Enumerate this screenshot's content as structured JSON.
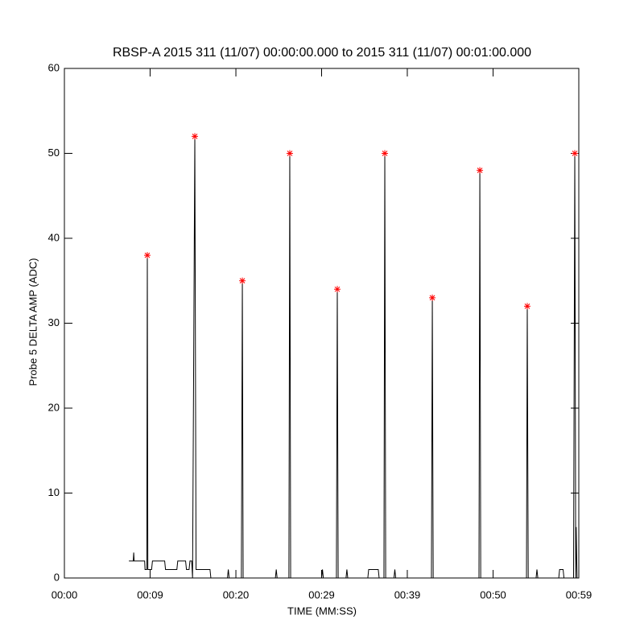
{
  "chart_data": {
    "type": "line",
    "title": "RBSP-A 2015 311 (11/07) 00:00:00.000 to 2015 311 (11/07) 00:01:00.000",
    "x_label": "TIME (MM:SS)",
    "y_label": "Probe 5 DELTA AMP (ADC)",
    "xlim": [
      0,
      59
    ],
    "ylim": [
      0,
      60
    ],
    "xticks": [
      {
        "value": 0,
        "label": "00:00"
      },
      {
        "value": 9.83,
        "label": "00:09"
      },
      {
        "value": 19.67,
        "label": "00:20"
      },
      {
        "value": 29.5,
        "label": "00:29"
      },
      {
        "value": 39.33,
        "label": "00:39"
      },
      {
        "value": 49.17,
        "label": "00:50"
      },
      {
        "value": 59,
        "label": "00:59"
      }
    ],
    "yticks": [
      0,
      10,
      20,
      30,
      40,
      50,
      60
    ],
    "series": [
      {
        "color": "#000000",
        "marker": "none",
        "x": [
          7.4,
          7.9,
          7.95,
          8.0,
          9.2,
          9.25,
          9.45,
          9.51,
          9.57,
          10.0,
          10.1,
          11.5,
          11.6,
          12.9,
          13.0,
          13.9,
          14.0,
          14.3,
          14.4,
          14.6,
          14.7,
          14.96,
          15.1,
          16.7,
          16.8,
          18.7,
          18.8,
          18.9,
          20.3,
          20.41,
          20.5,
          24.2,
          24.3,
          24.4,
          25.75,
          25.85,
          25.95,
          29.5,
          29.6,
          29.7,
          31.2,
          31.3,
          31.4,
          32.3,
          32.4,
          32.5,
          34.8,
          34.9,
          36.0,
          36.1,
          36.65,
          36.75,
          36.85,
          37.8,
          37.9,
          38.0,
          42.1,
          42.2,
          42.3,
          47.55,
          47.65,
          47.75,
          53.0,
          53.09,
          53.2,
          54.1,
          54.2,
          54.3,
          56.7,
          56.8,
          57.2,
          57.3,
          58.4,
          58.54,
          58.65,
          58.7,
          58.8
        ],
        "values": [
          2,
          2,
          3,
          2,
          2,
          1,
          1,
          38,
          1,
          1,
          2,
          2,
          1,
          1,
          2,
          2,
          1,
          1,
          2,
          2,
          0,
          52,
          1,
          1,
          0,
          0,
          1,
          0,
          0,
          35,
          0,
          0,
          1,
          0,
          0,
          50,
          0,
          0,
          1,
          0,
          0,
          34,
          0,
          0,
          1,
          0,
          0,
          1,
          1,
          0,
          0,
          50,
          0,
          0,
          1,
          0,
          0,
          33,
          0,
          0,
          48,
          0,
          0,
          32,
          0,
          0,
          1,
          0,
          0,
          1,
          1,
          0,
          0,
          50,
          0,
          6,
          0
        ]
      },
      {
        "color": "#ff0000",
        "marker": "asterisk",
        "x": [
          9.51,
          14.96,
          20.41,
          25.85,
          31.3,
          36.75,
          42.2,
          47.65,
          53.09,
          58.54
        ],
        "values": [
          38,
          52,
          35,
          50,
          34,
          50,
          33,
          48,
          32,
          50
        ]
      }
    ]
  }
}
